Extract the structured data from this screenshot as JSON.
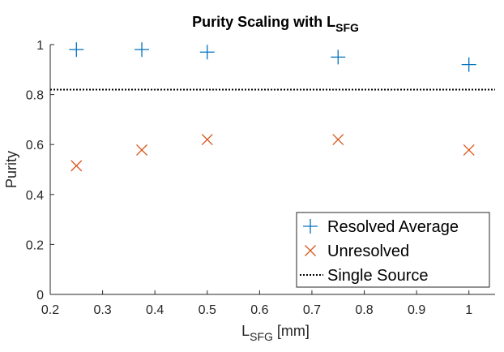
{
  "chart_data": {
    "type": "scatter",
    "title": {
      "main": "Purity Scaling with L",
      "sub": "SFG"
    },
    "xlabel": {
      "main": "L",
      "sub": "SFG",
      "suffix": " [mm]"
    },
    "ylabel": "Purity",
    "xlim": [
      0.2,
      1.05
    ],
    "ylim": [
      0,
      1
    ],
    "xticks": [
      0.2,
      0.3,
      0.4,
      0.5,
      0.6,
      0.7,
      0.8,
      0.9,
      1
    ],
    "xtick_labels": [
      "0.2",
      "0.3",
      "0.4",
      "0.5",
      "0.6",
      "0.7",
      "0.8",
      "0.9",
      "1"
    ],
    "yticks": [
      0,
      0.2,
      0.4,
      0.6,
      0.8,
      1
    ],
    "ytick_labels": [
      "0",
      "0.2",
      "0.4",
      "0.6",
      "0.8",
      "1"
    ],
    "grid": false,
    "legend_position": "bottom-right",
    "series": [
      {
        "name": "Resolved Average",
        "marker": "plus",
        "color": "#0072BD",
        "x": [
          0.25,
          0.375,
          0.5,
          0.75,
          1.0
        ],
        "y": [
          0.98,
          0.98,
          0.97,
          0.95,
          0.92
        ]
      },
      {
        "name": "Unresolved",
        "marker": "cross",
        "color": "#D95319",
        "x": [
          0.25,
          0.375,
          0.5,
          0.75,
          1.0
        ],
        "y": [
          0.515,
          0.578,
          0.62,
          0.62,
          0.578
        ]
      },
      {
        "name": "Single Source",
        "marker": "dotted-line",
        "color": "#000000",
        "value": 0.82
      }
    ]
  }
}
